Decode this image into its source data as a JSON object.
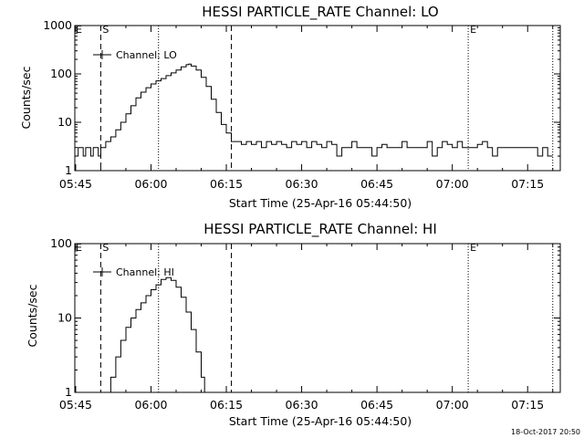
{
  "window": {
    "timestamp": "18-Oct-2017 20:50"
  },
  "chart_data": [
    {
      "type": "line",
      "title": "HESSI PARTICLE_RATE Channel: LO",
      "xlabel": "Start Time (25-Apr-16 05:44:50)",
      "ylabel": "Counts/sec",
      "yscale": "log",
      "xlim": [
        "05:44:50",
        "07:21:30"
      ],
      "ylim": [
        1,
        1000
      ],
      "xticks": [
        "05:45",
        "06:00",
        "06:15",
        "06:30",
        "06:45",
        "07:00",
        "07:15"
      ],
      "yticks": [
        "1",
        "10",
        "100",
        "1000"
      ],
      "legend": {
        "label": "Channel: LO",
        "position": "top-left"
      },
      "markers": [
        {
          "label": "S",
          "time": "05:50:00",
          "style": "dashed"
        },
        {
          "label": "",
          "time": "06:01:30",
          "style": "dotted"
        },
        {
          "label": "",
          "time": "06:16:00",
          "style": "dashed"
        },
        {
          "label": "E",
          "time": "07:03:10",
          "style": "dotted"
        },
        {
          "label": "",
          "time": "07:20:00",
          "style": "dotted"
        }
      ],
      "series": [
        {
          "x": [
            "05:44:50",
            "05:45:30",
            "05:46:00",
            "05:46:30",
            "05:47:00",
            "05:47:30",
            "05:48:00",
            "05:48:30",
            "05:49:00",
            "05:49:30",
            "05:50:00",
            "05:51:00",
            "05:52:00",
            "05:53:00",
            "05:54:00",
            "05:55:00",
            "05:56:00",
            "05:57:00",
            "05:58:00",
            "05:59:00",
            "06:00:00",
            "06:01:00",
            "06:02:00",
            "06:03:00",
            "06:04:00",
            "06:05:00",
            "06:06:00",
            "06:07:00",
            "06:07:30",
            "06:08:00",
            "06:09:00",
            "06:10:00",
            "06:11:00",
            "06:12:00",
            "06:13:00",
            "06:14:00",
            "06:15:00",
            "06:16:00",
            "06:17:00",
            "06:18:00",
            "06:19:00",
            "06:20:00",
            "06:21:00",
            "06:22:00",
            "06:23:00",
            "06:24:00",
            "06:25:00",
            "06:26:00",
            "06:27:00",
            "06:28:00",
            "06:29:00",
            "06:30:00",
            "06:31:00",
            "06:32:00",
            "06:33:00",
            "06:34:00",
            "06:35:00",
            "06:36:00",
            "06:37:00",
            "06:38:00",
            "06:39:00",
            "06:40:00",
            "06:41:00",
            "06:42:00",
            "06:43:00",
            "06:44:00",
            "06:45:00",
            "06:46:00",
            "06:47:00",
            "06:48:00",
            "06:49:00",
            "06:50:00",
            "06:51:00",
            "06:52:00",
            "06:53:00",
            "06:54:00",
            "06:55:00",
            "06:56:00",
            "06:57:00",
            "06:58:00",
            "06:59:00",
            "07:00:00",
            "07:01:00",
            "07:02:00",
            "07:03:00",
            "07:04:00",
            "07:05:00",
            "07:06:00",
            "07:07:00",
            "07:08:00",
            "07:09:00",
            "07:10:00",
            "07:11:00",
            "07:12:00",
            "07:13:00",
            "07:14:00",
            "07:15:00",
            "07:16:00",
            "07:17:00",
            "07:18:00",
            "07:19:00",
            "07:20:00"
          ],
          "y": [
            2,
            3,
            3,
            2,
            3,
            3,
            2,
            3,
            3,
            2,
            3,
            4,
            5,
            7,
            10,
            15,
            22,
            32,
            42,
            52,
            62,
            72,
            80,
            92,
            105,
            120,
            140,
            155,
            160,
            145,
            120,
            85,
            55,
            30,
            16,
            9,
            6,
            4,
            4,
            3.5,
            4,
            3.5,
            4,
            3,
            4,
            3.5,
            4,
            3.5,
            3,
            4,
            3.5,
            4,
            3,
            4,
            3.5,
            3,
            4,
            3.5,
            2,
            3,
            3,
            4,
            3,
            3,
            3,
            2,
            3,
            3.5,
            3,
            3,
            3,
            4,
            3,
            3,
            3,
            3,
            4,
            2,
            3,
            4,
            3.5,
            3,
            4,
            3,
            3,
            3,
            3.5,
            4,
            3,
            2,
            3,
            3,
            3,
            3,
            3,
            3,
            3,
            3,
            2,
            3,
            2,
            2
          ]
        }
      ]
    },
    {
      "type": "line",
      "title": "HESSI PARTICLE_RATE Channel: HI",
      "xlabel": "Start Time (25-Apr-16 05:44:50)",
      "ylabel": "Counts/sec",
      "yscale": "log",
      "xlim": [
        "05:44:50",
        "07:21:30"
      ],
      "ylim": [
        1,
        100
      ],
      "xticks": [
        "05:45",
        "06:00",
        "06:15",
        "06:30",
        "06:45",
        "07:00",
        "07:15"
      ],
      "yticks": [
        "1",
        "10",
        "100"
      ],
      "legend": {
        "label": "Channel: HI",
        "position": "top-left"
      },
      "markers": [
        {
          "label": "S",
          "time": "05:50:00",
          "style": "dashed"
        },
        {
          "label": "",
          "time": "06:01:30",
          "style": "dotted"
        },
        {
          "label": "",
          "time": "06:16:00",
          "style": "dashed"
        },
        {
          "label": "E",
          "time": "07:03:10",
          "style": "dotted"
        },
        {
          "label": "",
          "time": "07:20:00",
          "style": "dotted"
        }
      ],
      "series": [
        {
          "x": [
            "05:51:30",
            "05:52:00",
            "05:53:00",
            "05:54:00",
            "05:55:00",
            "05:56:00",
            "05:57:00",
            "05:58:00",
            "05:59:00",
            "06:00:00",
            "06:01:00",
            "06:02:00",
            "06:03:00",
            "06:04:00",
            "06:05:00",
            "06:06:00",
            "06:07:00",
            "06:08:00",
            "06:09:00",
            "06:10:00",
            "06:10:40"
          ],
          "y": [
            1,
            1.6,
            3,
            5,
            7.5,
            10,
            13,
            16,
            20,
            24,
            28,
            33,
            35,
            32,
            26,
            19,
            12,
            7,
            3.5,
            1.6,
            1
          ]
        }
      ]
    }
  ]
}
